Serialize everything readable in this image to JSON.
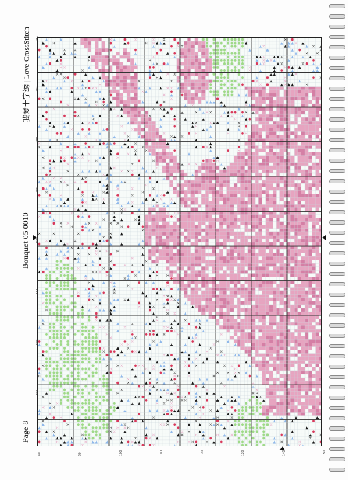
{
  "header": {
    "page_label": "Page 8",
    "chart_title": "Bouquet 05 0010",
    "brand": "我爱十字绣 | Love CrossStitch"
  },
  "chart": {
    "grid_columns": 80,
    "grid_rows": 118,
    "top_axis_labels": [
      "267",
      "280",
      "288",
      "296",
      "304",
      "312",
      "320",
      "328"
    ],
    "bottom_axis_labels": [
      "80",
      "90",
      "100",
      "110",
      "120",
      "130",
      "140",
      "150"
    ],
    "colors": {
      "pink": "#e7a4c0",
      "pink_dark": "#d57fa5",
      "green": "#9fd989",
      "blue": "#8fb8ea",
      "black": "#1a1a1a",
      "red": "#d83a5c",
      "grid": "#c5cfd6",
      "grid_major": "#333333"
    }
  }
}
